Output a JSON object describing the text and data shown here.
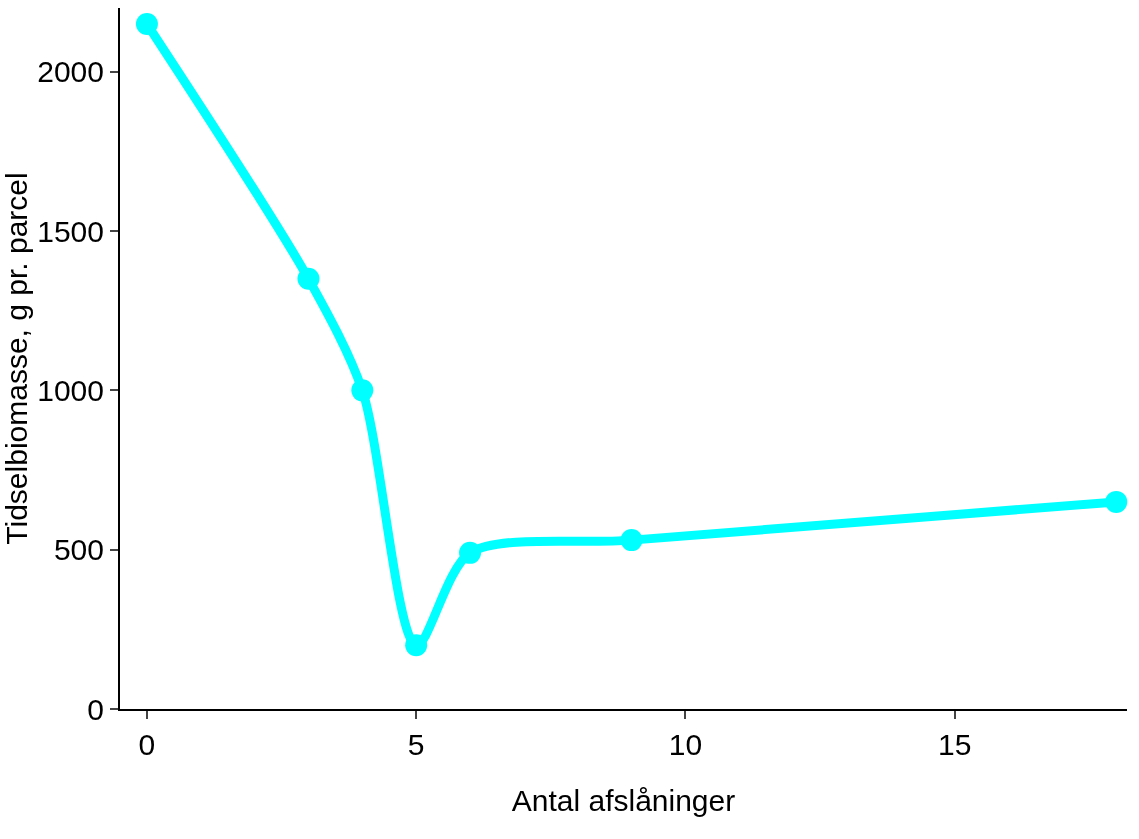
{
  "chart_data": {
    "type": "line",
    "xlabel": "Antal afslåninger",
    "ylabel": "Tidselbiomasse, g pr. parcel",
    "x": [
      0,
      3,
      4,
      5,
      6,
      9,
      18
    ],
    "series": [
      {
        "color": "#00ffff",
        "values": [
          2150,
          1350,
          1000,
          200,
          490,
          530,
          650
        ]
      }
    ],
    "xlim": [
      -0.5,
      18.2
    ],
    "xticks": [
      0,
      5,
      10,
      15
    ],
    "ylim": [
      0,
      2200
    ],
    "yticks": [
      0,
      500,
      1000,
      1500,
      2000
    ],
    "grid": false,
    "legend": false,
    "marker": "circle",
    "line_style": "solid"
  }
}
